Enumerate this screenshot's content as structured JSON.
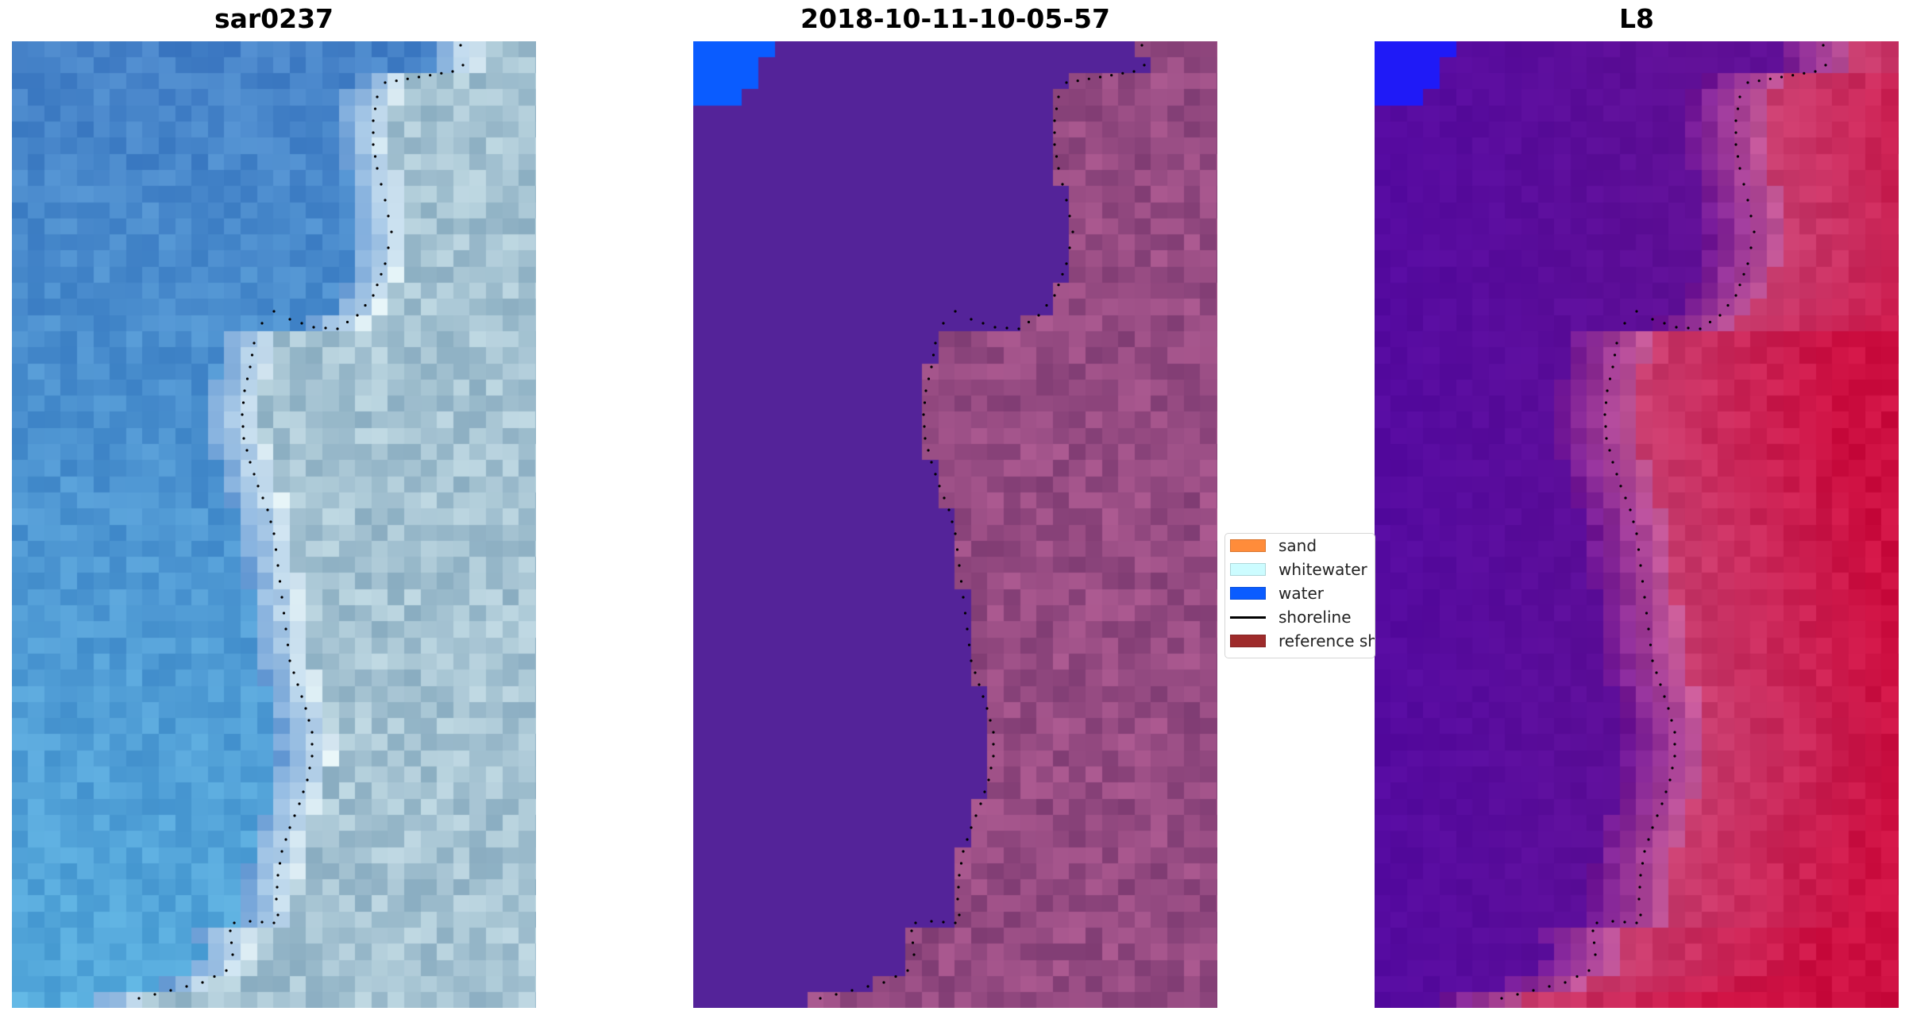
{
  "panels": [
    {
      "id": "rgb",
      "title": "sar0237"
    },
    {
      "id": "classified",
      "title": "2018-10-11-10-05-57"
    },
    {
      "id": "index",
      "title": "L8"
    }
  ],
  "legend": {
    "items": [
      {
        "label": "sand",
        "color": "#ff8c3a",
        "kind": "patch"
      },
      {
        "label": "whitewater",
        "color": "#ccfcff",
        "kind": "patch"
      },
      {
        "label": "water",
        "color": "#0a5cff",
        "kind": "patch"
      },
      {
        "label": "shoreline",
        "color": "#000000",
        "kind": "line"
      },
      {
        "label": "reference shoreline",
        "color": "#9e2b2b",
        "kind": "patch"
      }
    ]
  },
  "colors": {
    "classified_water_fill": "#542399",
    "classified_land_fill": "#8e4c84",
    "water_corner": "#0a5cff",
    "index_water": "#5a0aa0",
    "index_land": "#d0114a",
    "index_corner": "#1f1af7"
  }
}
